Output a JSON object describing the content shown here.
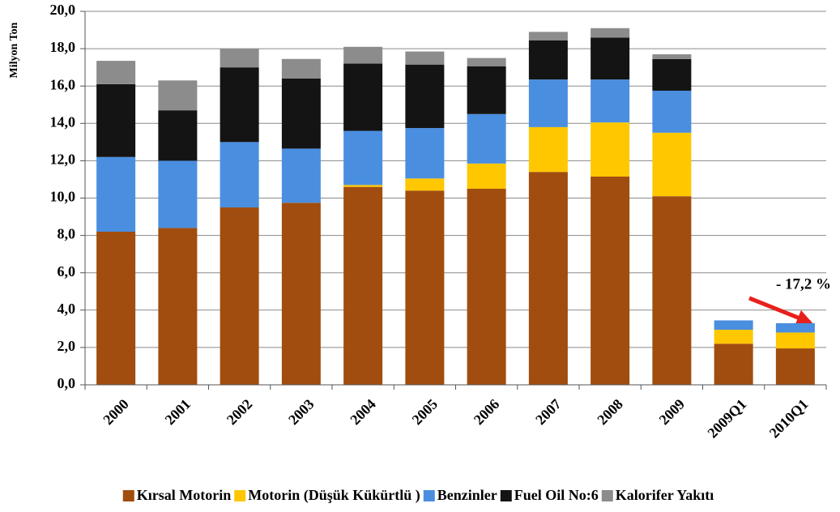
{
  "chart_data": {
    "type": "stacked_bar",
    "y_label": "Milyon Ton",
    "annotation": "- 17,2 %",
    "categories": [
      "2000",
      "2001",
      "2002",
      "2003",
      "2004",
      "2005",
      "2006",
      "2007",
      "2008",
      "2009",
      "2009Q1",
      "2010Q1"
    ],
    "series": [
      {
        "name": "Kırsal Motorin",
        "color": "#a14d0f",
        "values": [
          8.2,
          8.4,
          9.5,
          9.75,
          10.6,
          10.4,
          10.5,
          11.4,
          11.15,
          10.1,
          2.2,
          1.95
        ]
      },
      {
        "name": "Motorin (Düşük Kükürtlü )",
        "color": "#ffc700",
        "values": [
          0,
          0,
          0,
          0,
          0.1,
          0.65,
          1.35,
          2.4,
          2.9,
          3.4,
          0.75,
          0.85
        ]
      },
      {
        "name": "Benzinler",
        "color": "#4a8ee0",
        "values": [
          4.0,
          3.6,
          3.5,
          2.9,
          2.9,
          2.7,
          2.65,
          2.55,
          2.3,
          2.25,
          0.5,
          0.5
        ]
      },
      {
        "name": "Fuel Oil No:6",
        "color": "#141414",
        "values": [
          3.9,
          2.7,
          4.0,
          3.75,
          3.6,
          3.4,
          2.55,
          2.1,
          2.25,
          1.7,
          0,
          0
        ]
      },
      {
        "name": "Kalorifer Yakıtı",
        "color": "#8c8c8c",
        "values": [
          1.25,
          1.6,
          1.0,
          1.05,
          0.9,
          0.7,
          0.45,
          0.45,
          0.5,
          0.25,
          0,
          0
        ]
      }
    ],
    "ylim": [
      0,
      20
    ],
    "yticks": [
      {
        "value": 0,
        "label": "0,0"
      },
      {
        "value": 2,
        "label": "2,0"
      },
      {
        "value": 4,
        "label": "4,0"
      },
      {
        "value": 6,
        "label": "6,0"
      },
      {
        "value": 8,
        "label": "8,0"
      },
      {
        "value": 10,
        "label": "10,0"
      },
      {
        "value": 12,
        "label": "12,0"
      },
      {
        "value": 14,
        "label": "14,0"
      },
      {
        "value": 16,
        "label": "16,0"
      },
      {
        "value": 18,
        "label": "18,0"
      },
      {
        "value": 20,
        "label": "20,0"
      }
    ],
    "grid": true,
    "legend": "bottom"
  }
}
